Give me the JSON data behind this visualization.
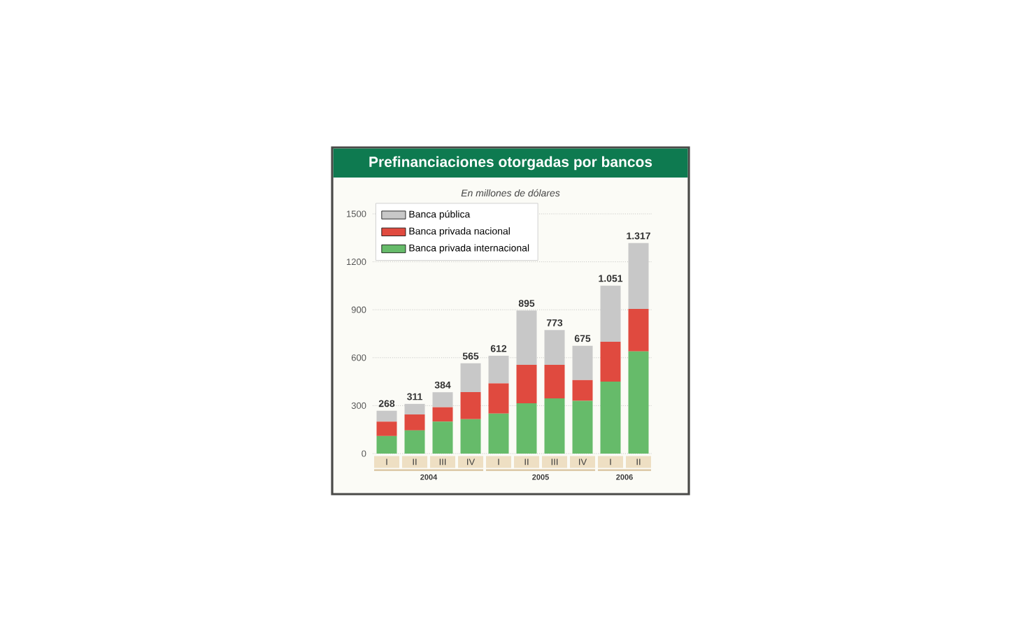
{
  "chart_data": {
    "type": "bar",
    "title": "Prefinanciaciones otorgadas por bancos",
    "subtitle": "En millones de dólares",
    "categories": [
      "I",
      "II",
      "III",
      "IV",
      "I",
      "II",
      "III",
      "IV",
      "I",
      "II"
    ],
    "stacked": true,
    "series": [
      {
        "name": "Banca privada internacional",
        "color": "#66bb6a",
        "values": [
          110,
          145,
          200,
          215,
          250,
          315,
          345,
          330,
          450,
          640
        ]
      },
      {
        "name": "Banca privada nacional",
        "color": "#e04a3f",
        "values": [
          90,
          100,
          90,
          170,
          190,
          240,
          210,
          130,
          250,
          265
        ]
      },
      {
        "name": "Banca pública",
        "color": "#c8c8c8",
        "values": [
          68,
          66,
          94,
          180,
          172,
          340,
          218,
          215,
          351,
          412
        ]
      }
    ],
    "totals": [
      "268",
      "311",
      "384",
      "565",
      "612",
      "895",
      "773",
      "675",
      "1.051",
      "1.317"
    ],
    "ylim": [
      0,
      1500
    ],
    "yticks": [
      0,
      300,
      600,
      900,
      1200,
      1500
    ],
    "grid": "y",
    "legend": "top left",
    "annotations": [
      "2004",
      "2005",
      "2006"
    ]
  }
}
